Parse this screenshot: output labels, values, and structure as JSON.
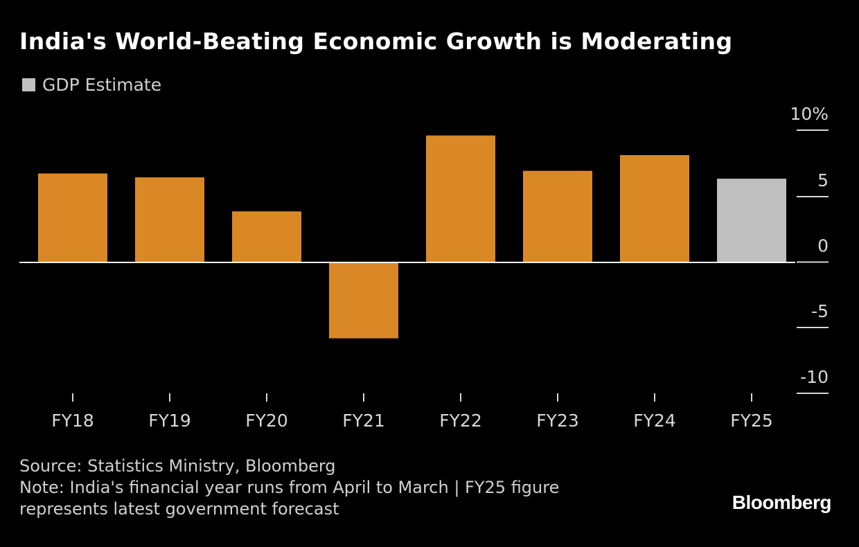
{
  "header": {
    "title": "India's World-Beating Economic Growth is Moderating"
  },
  "legend": {
    "label": "GDP Estimate",
    "color": "#c0c0c0"
  },
  "colors": {
    "actual": "#da8826",
    "estimate": "#c0c0c0",
    "background": "#000000",
    "axis": "#ffffff",
    "tick_text": "#d8d8d8"
  },
  "chart_data": {
    "type": "bar",
    "title": "India's World-Beating Economic Growth is Moderating",
    "xlabel": "",
    "ylabel": "",
    "categories": [
      "FY18",
      "FY19",
      "FY20",
      "FY21",
      "FY22",
      "FY23",
      "FY24",
      "FY25"
    ],
    "values": [
      6.8,
      6.5,
      3.9,
      -5.8,
      9.7,
      7.0,
      8.2,
      6.4
    ],
    "estimate_flags": [
      false,
      false,
      false,
      false,
      false,
      false,
      false,
      true
    ],
    "ylim": [
      -10,
      10
    ],
    "yticks": [
      10,
      5,
      0,
      -5,
      -10
    ],
    "ytick_labels": [
      "10%",
      "5",
      "0",
      "-5",
      "-10"
    ],
    "legend": [
      "GDP Estimate"
    ],
    "grid": false
  },
  "footer": {
    "source": "Source: Statistics Ministry, Bloomberg",
    "note_line1": "Note: India's financial year runs from April to March | FY25 figure",
    "note_line2": "represents latest government forecast",
    "brand": "Bloomberg"
  }
}
